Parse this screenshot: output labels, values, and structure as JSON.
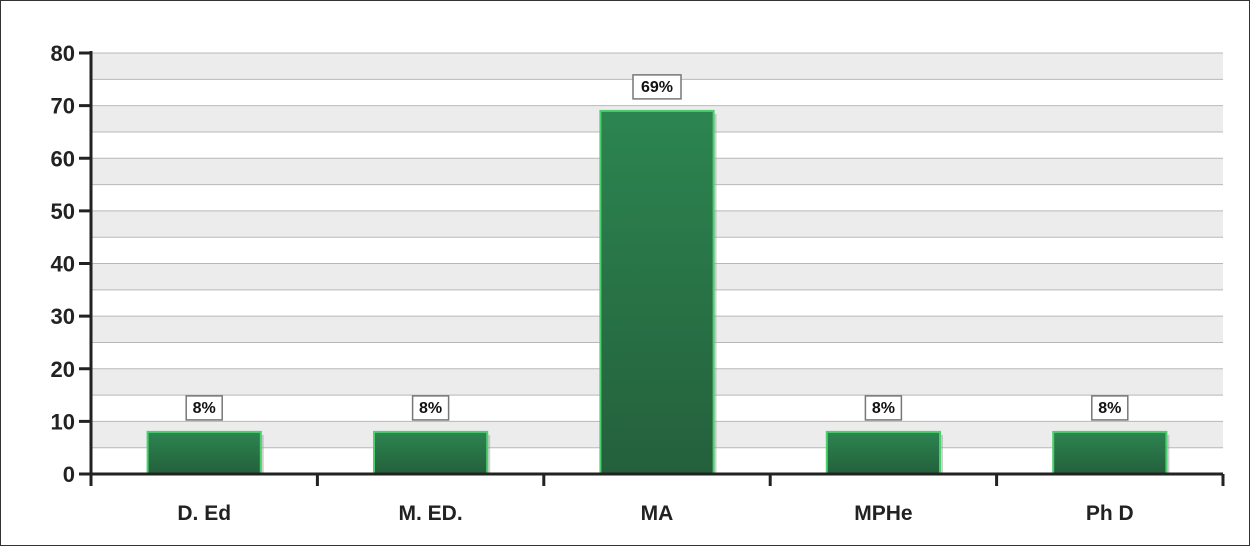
{
  "chart_data": {
    "type": "bar",
    "categories": [
      "D. Ed",
      "M. ED.",
      "MA",
      "MPHe",
      "Ph D"
    ],
    "values": [
      8,
      8,
      69,
      8,
      8
    ],
    "data_labels": [
      "8%",
      "8%",
      "69%",
      "8%",
      "8%"
    ],
    "title": "",
    "xlabel": "",
    "ylabel": "",
    "ylim": [
      0,
      80
    ],
    "yticks": [
      0,
      10,
      20,
      30,
      40,
      50,
      60,
      70,
      80
    ],
    "grid": true,
    "legend": "none"
  },
  "colors": {
    "bar_fill": "#2a7a48",
    "bar_edge": "#4ccf6f",
    "band_light": "#ececec",
    "band_white": "#ffffff",
    "grid_line": "#b8b8b8",
    "axis": "#222222"
  }
}
